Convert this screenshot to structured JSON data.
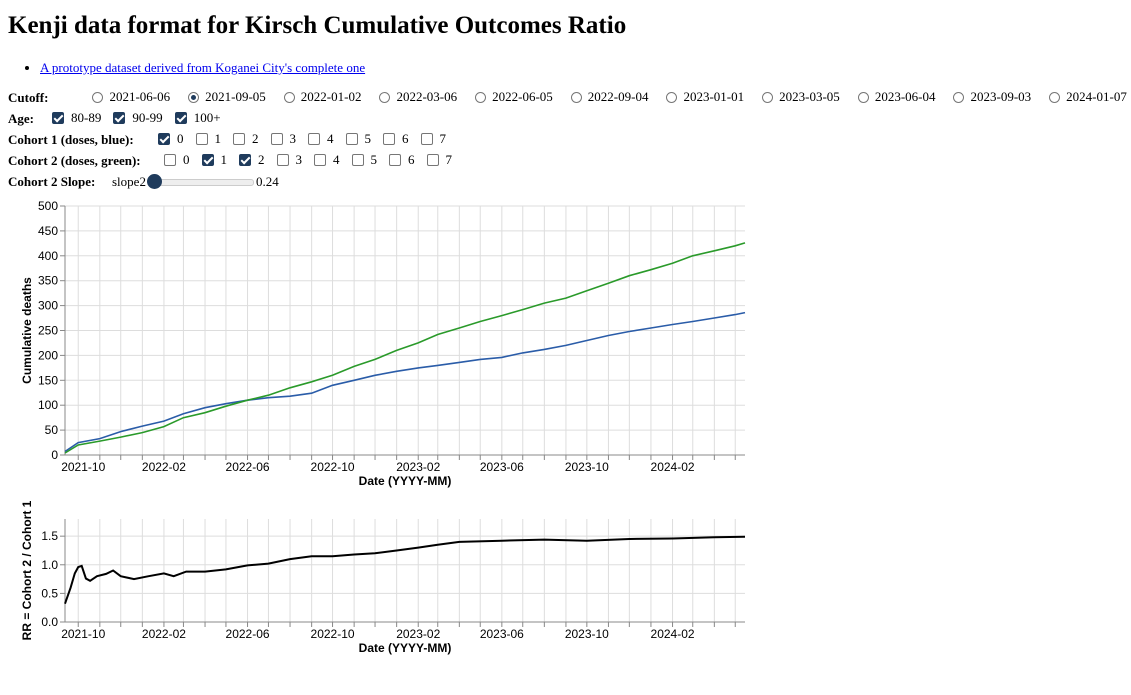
{
  "title": "Kenji data format for Kirsch Cumulative Outcomes Ratio",
  "link": "A prototype dataset derived from Koganei City's complete one",
  "controls": {
    "cutoff_label": "Cutoff:",
    "cutoffs": [
      "2021-06-06",
      "2021-09-05",
      "2022-01-02",
      "2022-03-06",
      "2022-06-05",
      "2022-09-04",
      "2023-01-01",
      "2023-03-05",
      "2023-06-04",
      "2023-09-03",
      "2024-01-07"
    ],
    "cutoff_selected": "2021-09-05",
    "age_label": "Age:",
    "ages": [
      {
        "label": "80-89",
        "checked": true
      },
      {
        "label": "90-99",
        "checked": true
      },
      {
        "label": "100+",
        "checked": true
      }
    ],
    "cohort1_label": "Cohort 1 (doses, blue):",
    "cohort1": [
      true,
      false,
      false,
      false,
      false,
      false,
      false,
      false
    ],
    "cohort2_label": "Cohort 2 (doses, green):",
    "cohort2": [
      false,
      true,
      true,
      false,
      false,
      false,
      false,
      false
    ],
    "doses": [
      "0",
      "1",
      "2",
      "3",
      "4",
      "5",
      "6",
      "7"
    ],
    "slope_label": "Cohort 2 Slope:",
    "slope_name": "slope2",
    "slope_value": "0.24",
    "slope_fraction": 0.0
  },
  "chart_data": [
    {
      "type": "line",
      "xlabel": "Date (YYYY-MM)",
      "ylabel": "Cumulative deaths",
      "ylim": [
        0,
        500
      ],
      "yticks": [
        "0",
        "50",
        "100",
        "150",
        "200",
        "250",
        "300",
        "350",
        "400",
        "450",
        "500"
      ],
      "xticks": [
        "2021-10",
        "2022-02",
        "2022-06",
        "2022-10",
        "2023-02",
        "2023-06",
        "2023-10",
        "2024-02"
      ],
      "xdomain": [
        "2021-09-12",
        "2024-05-15"
      ],
      "dates": [
        "2021-09-12",
        "2021-10-01",
        "2021-11-01",
        "2021-12-01",
        "2022-01-01",
        "2022-02-01",
        "2022-03-01",
        "2022-04-01",
        "2022-05-01",
        "2022-06-01",
        "2022-07-01",
        "2022-08-01",
        "2022-09-01",
        "2022-10-01",
        "2022-11-01",
        "2022-12-01",
        "2023-01-01",
        "2023-02-01",
        "2023-03-01",
        "2023-04-01",
        "2023-05-01",
        "2023-06-01",
        "2023-07-01",
        "2023-08-01",
        "2023-09-01",
        "2023-10-01",
        "2023-11-01",
        "2023-12-01",
        "2024-01-01",
        "2024-02-01",
        "2024-03-01",
        "2024-04-01",
        "2024-05-01",
        "2024-05-15"
      ],
      "series": [
        {
          "name": "Cohort 1",
          "color": "#2a5ca8",
          "values": [
            7,
            25,
            33,
            47,
            58,
            68,
            83,
            95,
            103,
            110,
            115,
            118,
            124,
            140,
            150,
            160,
            168,
            175,
            180,
            186,
            192,
            196,
            205,
            212,
            220,
            230,
            240,
            248,
            255,
            262,
            268,
            275,
            282,
            286
          ]
        },
        {
          "name": "Cohort 2",
          "color": "#2a9a2a",
          "values": [
            4,
            20,
            28,
            36,
            45,
            57,
            75,
            85,
            98,
            110,
            120,
            135,
            147,
            160,
            178,
            192,
            210,
            225,
            242,
            255,
            268,
            280,
            292,
            305,
            315,
            330,
            345,
            360,
            372,
            385,
            400,
            410,
            420,
            426
          ]
        }
      ]
    },
    {
      "type": "line",
      "xlabel": "Date (YYYY-MM)",
      "ylabel": "RR = Cohort 2 / Cohort 1",
      "ylim": [
        0,
        1.8
      ],
      "yticks": [
        "0.0",
        "0.5",
        "1.0",
        "1.5"
      ],
      "xticks": [
        "2021-10",
        "2022-02",
        "2022-06",
        "2022-10",
        "2023-02",
        "2023-06",
        "2023-10",
        "2024-02"
      ],
      "xdomain": [
        "2021-09-12",
        "2024-05-15"
      ],
      "series": [
        {
          "name": "RR",
          "color": "#000000",
          "dates": [
            "2021-09-12",
            "2021-09-20",
            "2021-09-26",
            "2021-10-01",
            "2021-10-06",
            "2021-10-12",
            "2021-10-18",
            "2021-10-28",
            "2021-11-10",
            "2021-11-20",
            "2021-12-01",
            "2021-12-20",
            "2022-01-10",
            "2022-02-01",
            "2022-02-15",
            "2022-03-05",
            "2022-04-01",
            "2022-05-01",
            "2022-06-01",
            "2022-07-01",
            "2022-08-01",
            "2022-09-01",
            "2022-10-01",
            "2022-11-01",
            "2022-12-01",
            "2023-01-01",
            "2023-02-01",
            "2023-03-01",
            "2023-04-01",
            "2023-06-01",
            "2023-08-01",
            "2023-10-01",
            "2023-12-01",
            "2024-02-01",
            "2024-04-01",
            "2024-05-15"
          ],
          "values": [
            0.32,
            0.6,
            0.85,
            0.96,
            0.98,
            0.76,
            0.72,
            0.8,
            0.84,
            0.9,
            0.8,
            0.75,
            0.8,
            0.85,
            0.8,
            0.88,
            0.88,
            0.92,
            0.99,
            1.02,
            1.1,
            1.15,
            1.15,
            1.18,
            1.2,
            1.25,
            1.3,
            1.35,
            1.4,
            1.42,
            1.44,
            1.42,
            1.45,
            1.46,
            1.48,
            1.49
          ]
        }
      ]
    }
  ]
}
